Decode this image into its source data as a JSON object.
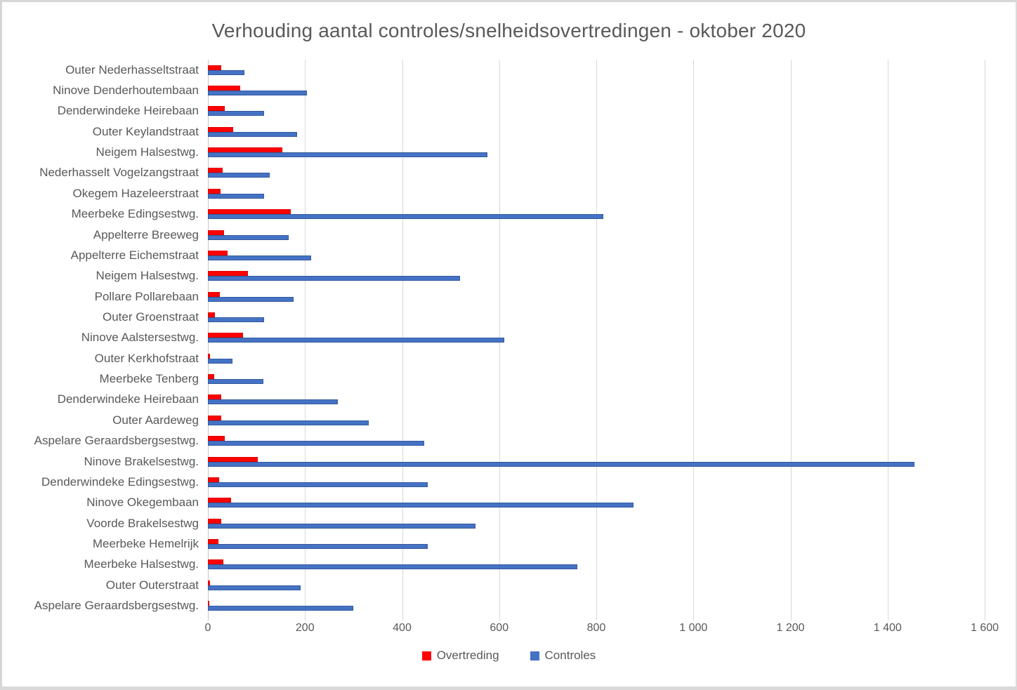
{
  "title": "Verhouding aantal controles/snelheidsovertredingen - oktober 2020",
  "colors": {
    "overtreding": "#FF0000",
    "controles": "#4472C4",
    "gridline": "#D9D9D9",
    "axis_line": "#C6C6C6",
    "text": "#595959"
  },
  "chart_data": {
    "type": "bar",
    "orientation": "horizontal",
    "title": "Verhouding aantal controles/snelheidsovertredingen - oktober 2020",
    "categories": [
      "Outer Nederhasseltstraat",
      "Ninove Denderhoutembaan",
      "Denderwindeke Heirebaan",
      "Outer Keylandstraat",
      "Neigem Halsestwg.",
      "Nederhasselt Vogelzangstraat",
      "Okegem Hazeleerstraat",
      "Meerbeke Edingsestwg.",
      "Appelterre Breeweg",
      "Appelterre Eichemstraat",
      "Neigem Halsestwg.",
      "Pollare Pollarebaan",
      "Outer Groenstraat",
      "Ninove Aalstersestwg.",
      "Outer Kerkhofstraat",
      "Meerbeke Tenberg",
      "Denderwindeke Heirebaan",
      "Outer Aardeweg",
      "Aspelare Geraardsbergsestwg.",
      "Ninove Brakelsestwg.",
      "Denderwindeke Edingsestwg.",
      "Ninove Okegembaan",
      "Voorde Brakelsestwg",
      "Meerbeke Hemelrijk",
      "Meerbeke Halsestwg.",
      "Outer Outerstraat",
      "Aspelare Geraardsbergsestwg."
    ],
    "series": [
      {
        "name": "Overtreding",
        "color": "#FF0000",
        "values": [
          28,
          67,
          35,
          52,
          154,
          30,
          26,
          171,
          33,
          41,
          83,
          24,
          15,
          72,
          5,
          13,
          28,
          28,
          34,
          103,
          23,
          48,
          28,
          21,
          32,
          5,
          3
        ]
      },
      {
        "name": "Controles",
        "color": "#4472C4",
        "values": [
          75,
          204,
          116,
          184,
          576,
          127,
          116,
          815,
          166,
          213,
          520,
          176,
          116,
          610,
          50,
          114,
          267,
          331,
          445,
          1455,
          453,
          876,
          551,
          453,
          761,
          191,
          300
        ]
      }
    ],
    "xlim": [
      0,
      1600
    ],
    "xticks": [
      0,
      200,
      400,
      600,
      800,
      1000,
      1200,
      1400,
      1600
    ],
    "xtick_labels": [
      "0",
      "200",
      "400",
      "600",
      "800",
      "1 000",
      "1 200",
      "1 400",
      "1 600"
    ],
    "grid": "vertical-gridlines-on",
    "legend_position": "bottom"
  }
}
